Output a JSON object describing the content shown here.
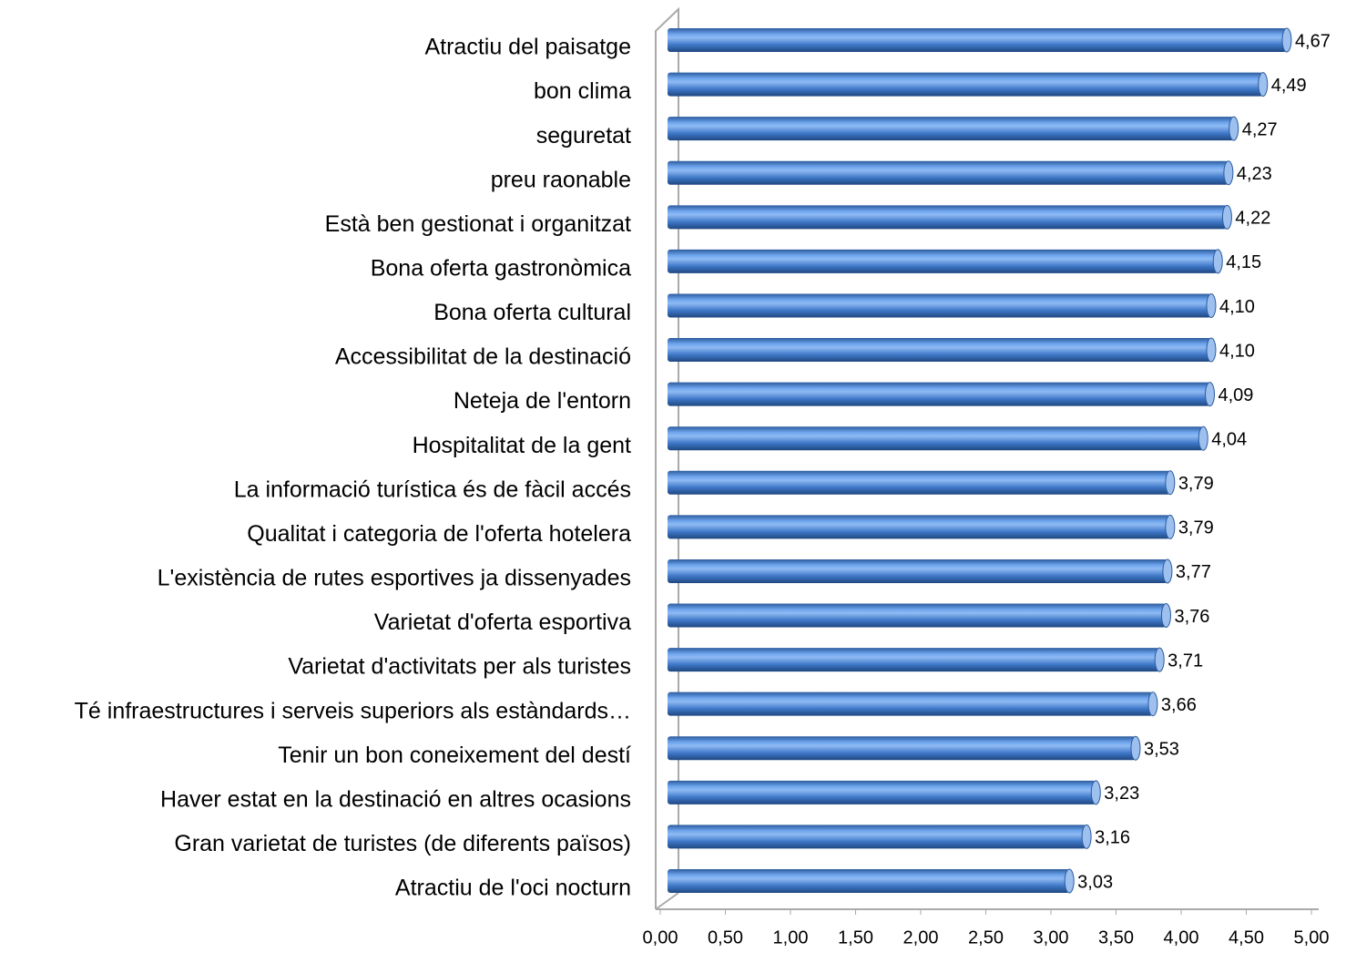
{
  "chart_data": {
    "type": "bar",
    "orientation": "horizontal",
    "categories": [
      "Atractiu del paisatge",
      "bon clima",
      "seguretat",
      "preu raonable",
      "Està ben gestionat i organitzat",
      "Bona oferta gastronòmica",
      "Bona oferta cultural",
      "Accessibilitat de la destinació",
      "Neteja de l'entorn",
      "Hospitalitat de la gent",
      "La informació turística és de fàcil accés",
      "Qualitat i categoria de l'oferta hotelera",
      "L'existència de rutes esportives ja dissenyades",
      "Varietat d'oferta esportiva",
      "Varietat d'activitats per als turistes",
      "Té infraestructures i serveis superiors als estàndards…",
      "Tenir un bon coneixement del destí",
      "Haver estat en la destinació en altres ocasions",
      "Gran varietat de turistes (de diferents països)",
      "Atractiu de l'oci nocturn"
    ],
    "values": [
      4.67,
      4.49,
      4.27,
      4.23,
      4.22,
      4.15,
      4.1,
      4.1,
      4.09,
      4.04,
      3.79,
      3.79,
      3.77,
      3.76,
      3.71,
      3.66,
      3.53,
      3.23,
      3.16,
      3.03
    ],
    "value_labels": [
      "4,67",
      "4,49",
      "4,27",
      "4,23",
      "4,22",
      "4,15",
      "4,10",
      "4,10",
      "4,09",
      "4,04",
      "3,79",
      "3,79",
      "3,77",
      "3,76",
      "3,71",
      "3,66",
      "3,53",
      "3,23",
      "3,16",
      "3,03"
    ],
    "color": "#4a86d8",
    "xlim": [
      0,
      5
    ],
    "xticks": [
      {
        "value": 0,
        "label": "0,00"
      },
      {
        "value": 0.5,
        "label": "0,50"
      },
      {
        "value": 1,
        "label": "1,00"
      },
      {
        "value": 1.5,
        "label": "1,50"
      },
      {
        "value": 2,
        "label": "2,00"
      },
      {
        "value": 2.5,
        "label": "2,50"
      },
      {
        "value": 3,
        "label": "3,00"
      },
      {
        "value": 3.5,
        "label": "3,50"
      },
      {
        "value": 4,
        "label": "4,00"
      },
      {
        "value": 4.5,
        "label": "4,50"
      },
      {
        "value": 5,
        "label": "5,00"
      }
    ],
    "grid": false
  }
}
